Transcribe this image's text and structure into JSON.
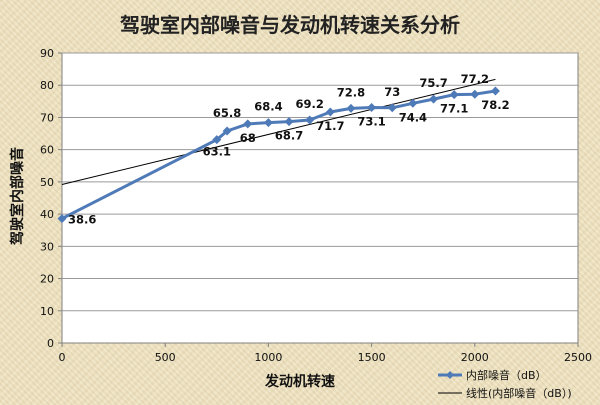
{
  "chart_data": {
    "type": "line",
    "title": "驾驶室内部噪音与发动机转速关系分析",
    "xlabel": "发动机转速",
    "ylabel": "驾驶室内部噪音",
    "xlim": [
      0,
      2500
    ],
    "ylim": [
      0,
      90
    ],
    "xticks": [
      0,
      500,
      1000,
      1500,
      2000,
      2500
    ],
    "yticks": [
      0,
      10,
      20,
      30,
      40,
      50,
      60,
      70,
      80,
      90
    ],
    "grid": "horizontal",
    "legend_position": "bottom-right",
    "series": [
      {
        "name": "内部噪音（dB）",
        "color": "#4f7ab8",
        "x": [
          0,
          750,
          800,
          900,
          1000,
          1100,
          1200,
          1300,
          1400,
          1500,
          1600,
          1700,
          1800,
          1900,
          2000,
          2100
        ],
        "y": [
          38.6,
          63.1,
          65.8,
          68,
          68.4,
          68.7,
          69.2,
          71.7,
          72.8,
          73.1,
          73,
          74.4,
          75.7,
          77.1,
          77.2,
          78.2
        ],
        "labels": [
          "38.6",
          "63.1",
          "65.8",
          "68",
          "68.4",
          "68.7",
          "69.2",
          "71.7",
          "72.8",
          "73.1",
          "73",
          "74.4",
          "75.7",
          "77.1",
          "77.2",
          "78.2"
        ]
      },
      {
        "name": "线性(内部噪音（dB）)",
        "type": "trendline",
        "color": "#000000",
        "x": [
          0,
          2100
        ],
        "y": [
          49.2,
          81.8
        ]
      }
    ]
  }
}
